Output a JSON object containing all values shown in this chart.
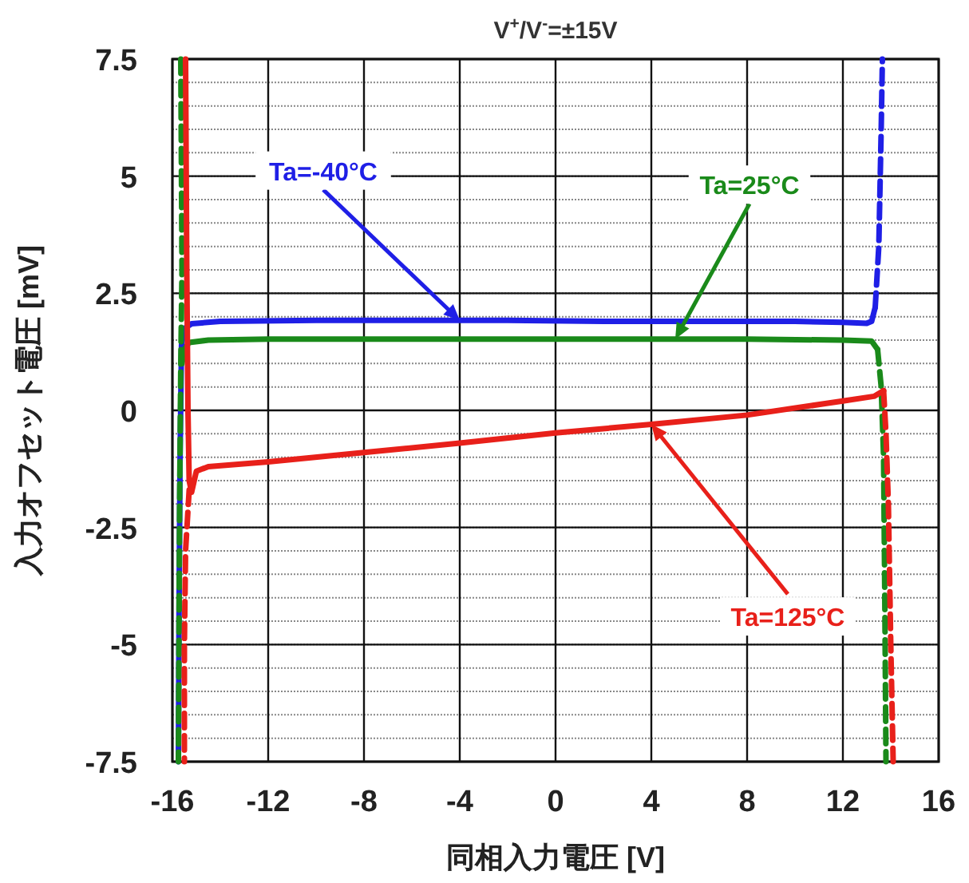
{
  "chart_data": {
    "type": "line",
    "title": "V$^{+}$/V$^{-}$=±15V",
    "xlabel": "同相入力電圧 [V]",
    "ylabel": "入力オフセット電圧 [mV]",
    "xlim": [
      -16,
      16
    ],
    "xticks": [
      -16,
      -12,
      -8,
      -4,
      0,
      4,
      8,
      12,
      16
    ],
    "ylim": [
      -7.5,
      7.5
    ],
    "yticks": [
      7.5,
      5,
      2.5,
      0,
      -2.5,
      -5,
      -7.5
    ],
    "grid": true,
    "marker": "none",
    "series": [
      {
        "color": "#1f1fe6",
        "line_style": "solid",
        "x": [
          -15.75,
          -15.72,
          -15.68,
          -15.62,
          -15.5,
          -15.2,
          -14,
          -10,
          -6,
          -2,
          2,
          6,
          10,
          12,
          13,
          13.2,
          13.35
        ],
        "values": [
          -7.5,
          -4,
          -1,
          1.4,
          1.75,
          1.85,
          1.9,
          1.92,
          1.92,
          1.92,
          1.9,
          1.9,
          1.9,
          1.88,
          1.86,
          1.9,
          2.2
        ]
      },
      {
        "color": "#1f1fe6",
        "line_style": "dashed",
        "x": [
          13.35,
          13.5,
          13.6,
          13.65
        ],
        "values": [
          2.2,
          3.5,
          6,
          7.5
        ]
      },
      {
        "color": "#1a8a1a",
        "line_style": "solid",
        "x": [
          -15.6,
          -15.5,
          -15.3,
          -14.5,
          -12,
          -8,
          -4,
          0,
          4,
          8,
          12,
          13.2,
          13.45
        ],
        "values": [
          1.0,
          1.3,
          1.45,
          1.5,
          1.52,
          1.52,
          1.52,
          1.52,
          1.52,
          1.52,
          1.5,
          1.48,
          1.3
        ]
      },
      {
        "color": "#1a8a1a",
        "line_style": "dashed",
        "x": [
          13.45,
          13.6,
          13.7,
          13.75,
          13.8
        ],
        "values": [
          1.3,
          0.5,
          -1,
          -4,
          -7.5
        ]
      },
      {
        "color": "#1a8a1a",
        "line_style": "dashed",
        "x": [
          -15.65,
          -15.6,
          -15.65,
          -15.7,
          -15.75
        ],
        "values": [
          7.5,
          3,
          1,
          -2,
          -7.5
        ]
      },
      {
        "color": "#e8201a",
        "line_style": "solid",
        "x": [
          -15.45,
          -15.4,
          -15.35,
          -15.3,
          -15.2,
          -15,
          -14.5,
          -12,
          -8,
          -4,
          0,
          4,
          8,
          12,
          13.3,
          13.7
        ],
        "values": [
          7.5,
          3,
          0,
          -1.5,
          -1.75,
          -1.3,
          -1.2,
          -1.1,
          -0.9,
          -0.7,
          -0.48,
          -0.3,
          -0.1,
          0.2,
          0.3,
          0.42
        ]
      },
      {
        "color": "#e8201a",
        "line_style": "dashed",
        "x": [
          13.7,
          13.8,
          13.9,
          14,
          14.1
        ],
        "values": [
          0.42,
          -0.5,
          -2,
          -5,
          -7.5
        ]
      },
      {
        "color": "#e8201a",
        "line_style": "dashed",
        "x": [
          -15.3,
          -15.45,
          -15.5,
          -15.5
        ],
        "values": [
          -1.7,
          -3,
          -5,
          -7.5
        ]
      }
    ],
    "annotations": [
      {
        "text": "Ta=-40°C",
        "x": -4,
        "y": 1.92
      },
      {
        "text": "Ta=25°C",
        "x": 5,
        "y": 1.52
      },
      {
        "text": "Ta=125°C",
        "x": 4,
        "y": -0.3
      }
    ]
  }
}
